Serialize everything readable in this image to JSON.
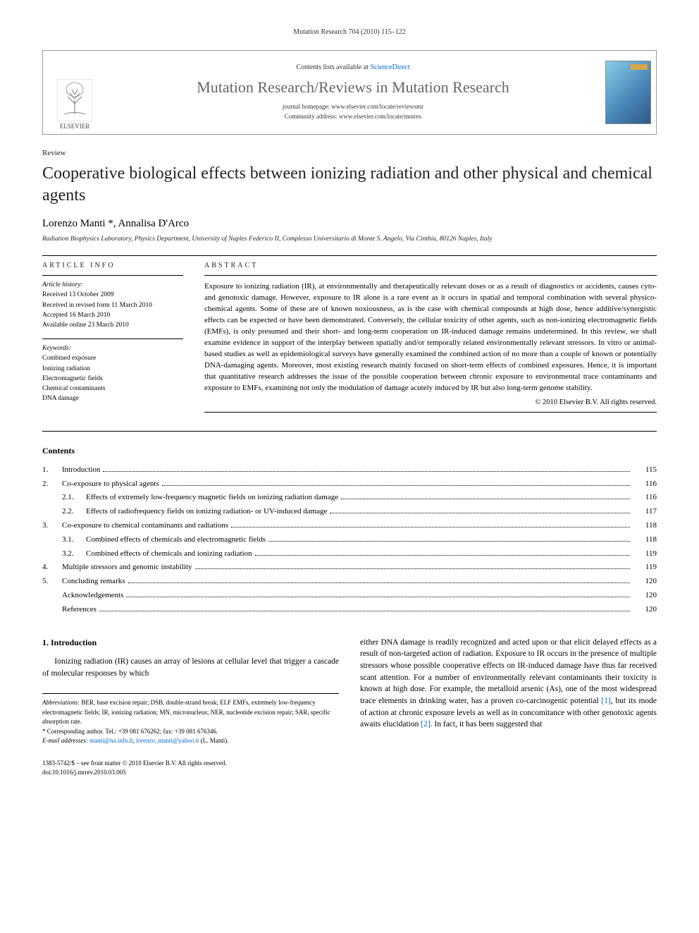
{
  "running_header": "Mutation Research 704 (2010) 115–122",
  "banner": {
    "publisher": "ELSEVIER",
    "contents_prefix": "Contents lists available at ",
    "contents_link": "ScienceDirect",
    "journal_title": "Mutation Research/Reviews in Mutation Research",
    "homepage_label": "journal homepage: ",
    "homepage_url": "www.elsevier.com/locate/reviewsmr",
    "community_label": "Community address: ",
    "community_url": "www.elsevier.com/locate/mutres"
  },
  "article": {
    "type": "Review",
    "title": "Cooperative biological effects between ionizing radiation and other physical and chemical agents",
    "authors_html": "Lorenzo Manti *, Annalisa D'Arco",
    "affiliation": "Radiation Biophysics Laboratory, Physics Department, University of Naples Federico II, Complesso Universitario di Monte S. Angelo, Via Cinthia, 80126 Naples, Italy"
  },
  "article_info": {
    "heading": "ARTICLE INFO",
    "history_heading": "Article history:",
    "history": [
      "Received 13 October 2009",
      "Received in revised form 11 March 2010",
      "Accepted 16 March 2010",
      "Available online 23 March 2010"
    ],
    "keywords_heading": "Keywords:",
    "keywords": [
      "Combined exposure",
      "Ionizing radiation",
      "Electromagnetic fields",
      "Chemical contaminants",
      "DNA damage"
    ]
  },
  "abstract": {
    "heading": "ABSTRACT",
    "text": "Exposure to ionizing radiation (IR), at environmentally and therapeutically relevant doses or as a result of diagnostics or accidents, causes cyto- and genotoxic damage. However, exposure to IR alone is a rare event as it occurs in spatial and temporal combination with several physico-chemical agents. Some of these are of known noxiousness, as is the case with chemical compounds at high dose, hence additive/synergistic effects can be expected or have been demonstrated. Conversely, the cellular toxicity of other agents, such as non-ionizing electromagnetic fields (EMFs), is only presumed and their short- and long-term cooperation on IR-induced damage remains undetermined. In this review, we shall examine evidence in support of the interplay between spatially and/or temporally related environmentally relevant stressors. In vitro or animal-based studies as well as epidemiological surveys have generally examined the combined action of no more than a couple of known or potentially DNA-damaging agents. Moreover, most existing research mainly focused on short-term effects of combined exposures. Hence, it is important that quantitative research addresses the issue of the possible cooperation between chronic exposure to environmental trace contaminants and exposure to EMFs, examining not only the modulation of damage acutely induced by IR but also long-term genome stability.",
    "copyright": "© 2010 Elsevier B.V. All rights reserved."
  },
  "contents": {
    "heading": "Contents",
    "items": [
      {
        "num": "1.",
        "label": "Introduction",
        "page": "115",
        "sub": []
      },
      {
        "num": "2.",
        "label": "Co-exposure to physical agents",
        "page": "116",
        "sub": [
          {
            "num": "2.1.",
            "label": "Effects of extremely low-frequency magnetic fields on ionizing radiation damage",
            "page": "116"
          },
          {
            "num": "2.2.",
            "label": "Effects of radiofrequency fields on ionizing radiation- or UV-induced damage",
            "page": "117"
          }
        ]
      },
      {
        "num": "3.",
        "label": "Co-exposure to chemical contaminants and radiations",
        "page": "118",
        "sub": [
          {
            "num": "3.1.",
            "label": "Combined effects of chemicals and electromagnetic fields",
            "page": "118"
          },
          {
            "num": "3.2.",
            "label": "Combined effects of chemicals and ionizing radiation",
            "page": "119"
          }
        ]
      },
      {
        "num": "4.",
        "label": "Multiple stressors and genomic instability",
        "page": "119",
        "sub": []
      },
      {
        "num": "5.",
        "label": "Concluding remarks",
        "page": "120",
        "sub": []
      },
      {
        "num": "",
        "label": "Acknowledgements",
        "page": "120",
        "sub": []
      },
      {
        "num": "",
        "label": "References",
        "page": "120",
        "sub": []
      }
    ]
  },
  "body": {
    "section_num": "1.",
    "section_title": "Introduction",
    "left_para": "Ionizing radiation (IR) causes an array of lesions at cellular level that trigger a cascade of molecular responses by which",
    "right_para_1": "either DNA damage is readily recognized and acted upon or that elicit delayed effects as a result of non-targeted action of radiation. Exposure to IR occurs in the presence of multiple stressors whose possible cooperative effects on IR-induced damage have thus far received scant attention. For a number of environmentally relevant contaminants their toxicity is known at high dose. For example, the metalloid arsenic (As), one of the most widespread trace elements in drinking water, has a proven co-carcinogenic potential ",
    "ref1": "[1]",
    "right_para_2": ", but its mode of action at chronic exposure levels as well as in concomitance with other genotoxic agents awaits elucidation ",
    "ref2": "[2]",
    "right_para_3": ". In fact, it has been suggested that"
  },
  "footnotes": {
    "abbrev_label": "Abbreviations:",
    "abbrev_text": " BER, base excision repair; DSB, double-strand break; ELF EMFs, extremely low-frequency electromagnetic fields; IR, ionizing radiation; MN, micronucleus; NER, nucleotide excision repair; SAR, specific absorption rate.",
    "corr_label": "* Corresponding author. Tel.: +39 081 676262; fax: +39 081 676346.",
    "email_label": "E-mail addresses:",
    "email1": "manti@na.infn.it",
    "email_sep": ", ",
    "email2": "lorenzo_manti@yahoo.it",
    "email_suffix": " (L. Manti)."
  },
  "footer": {
    "line1": "1383-5742/$ – see front matter © 2010 Elsevier B.V. All rights reserved.",
    "line2": "doi:10.1016/j.mrrev.2010.03.005"
  },
  "colors": {
    "link": "#0066cc",
    "journal_title": "#666666",
    "border": "#999999"
  }
}
